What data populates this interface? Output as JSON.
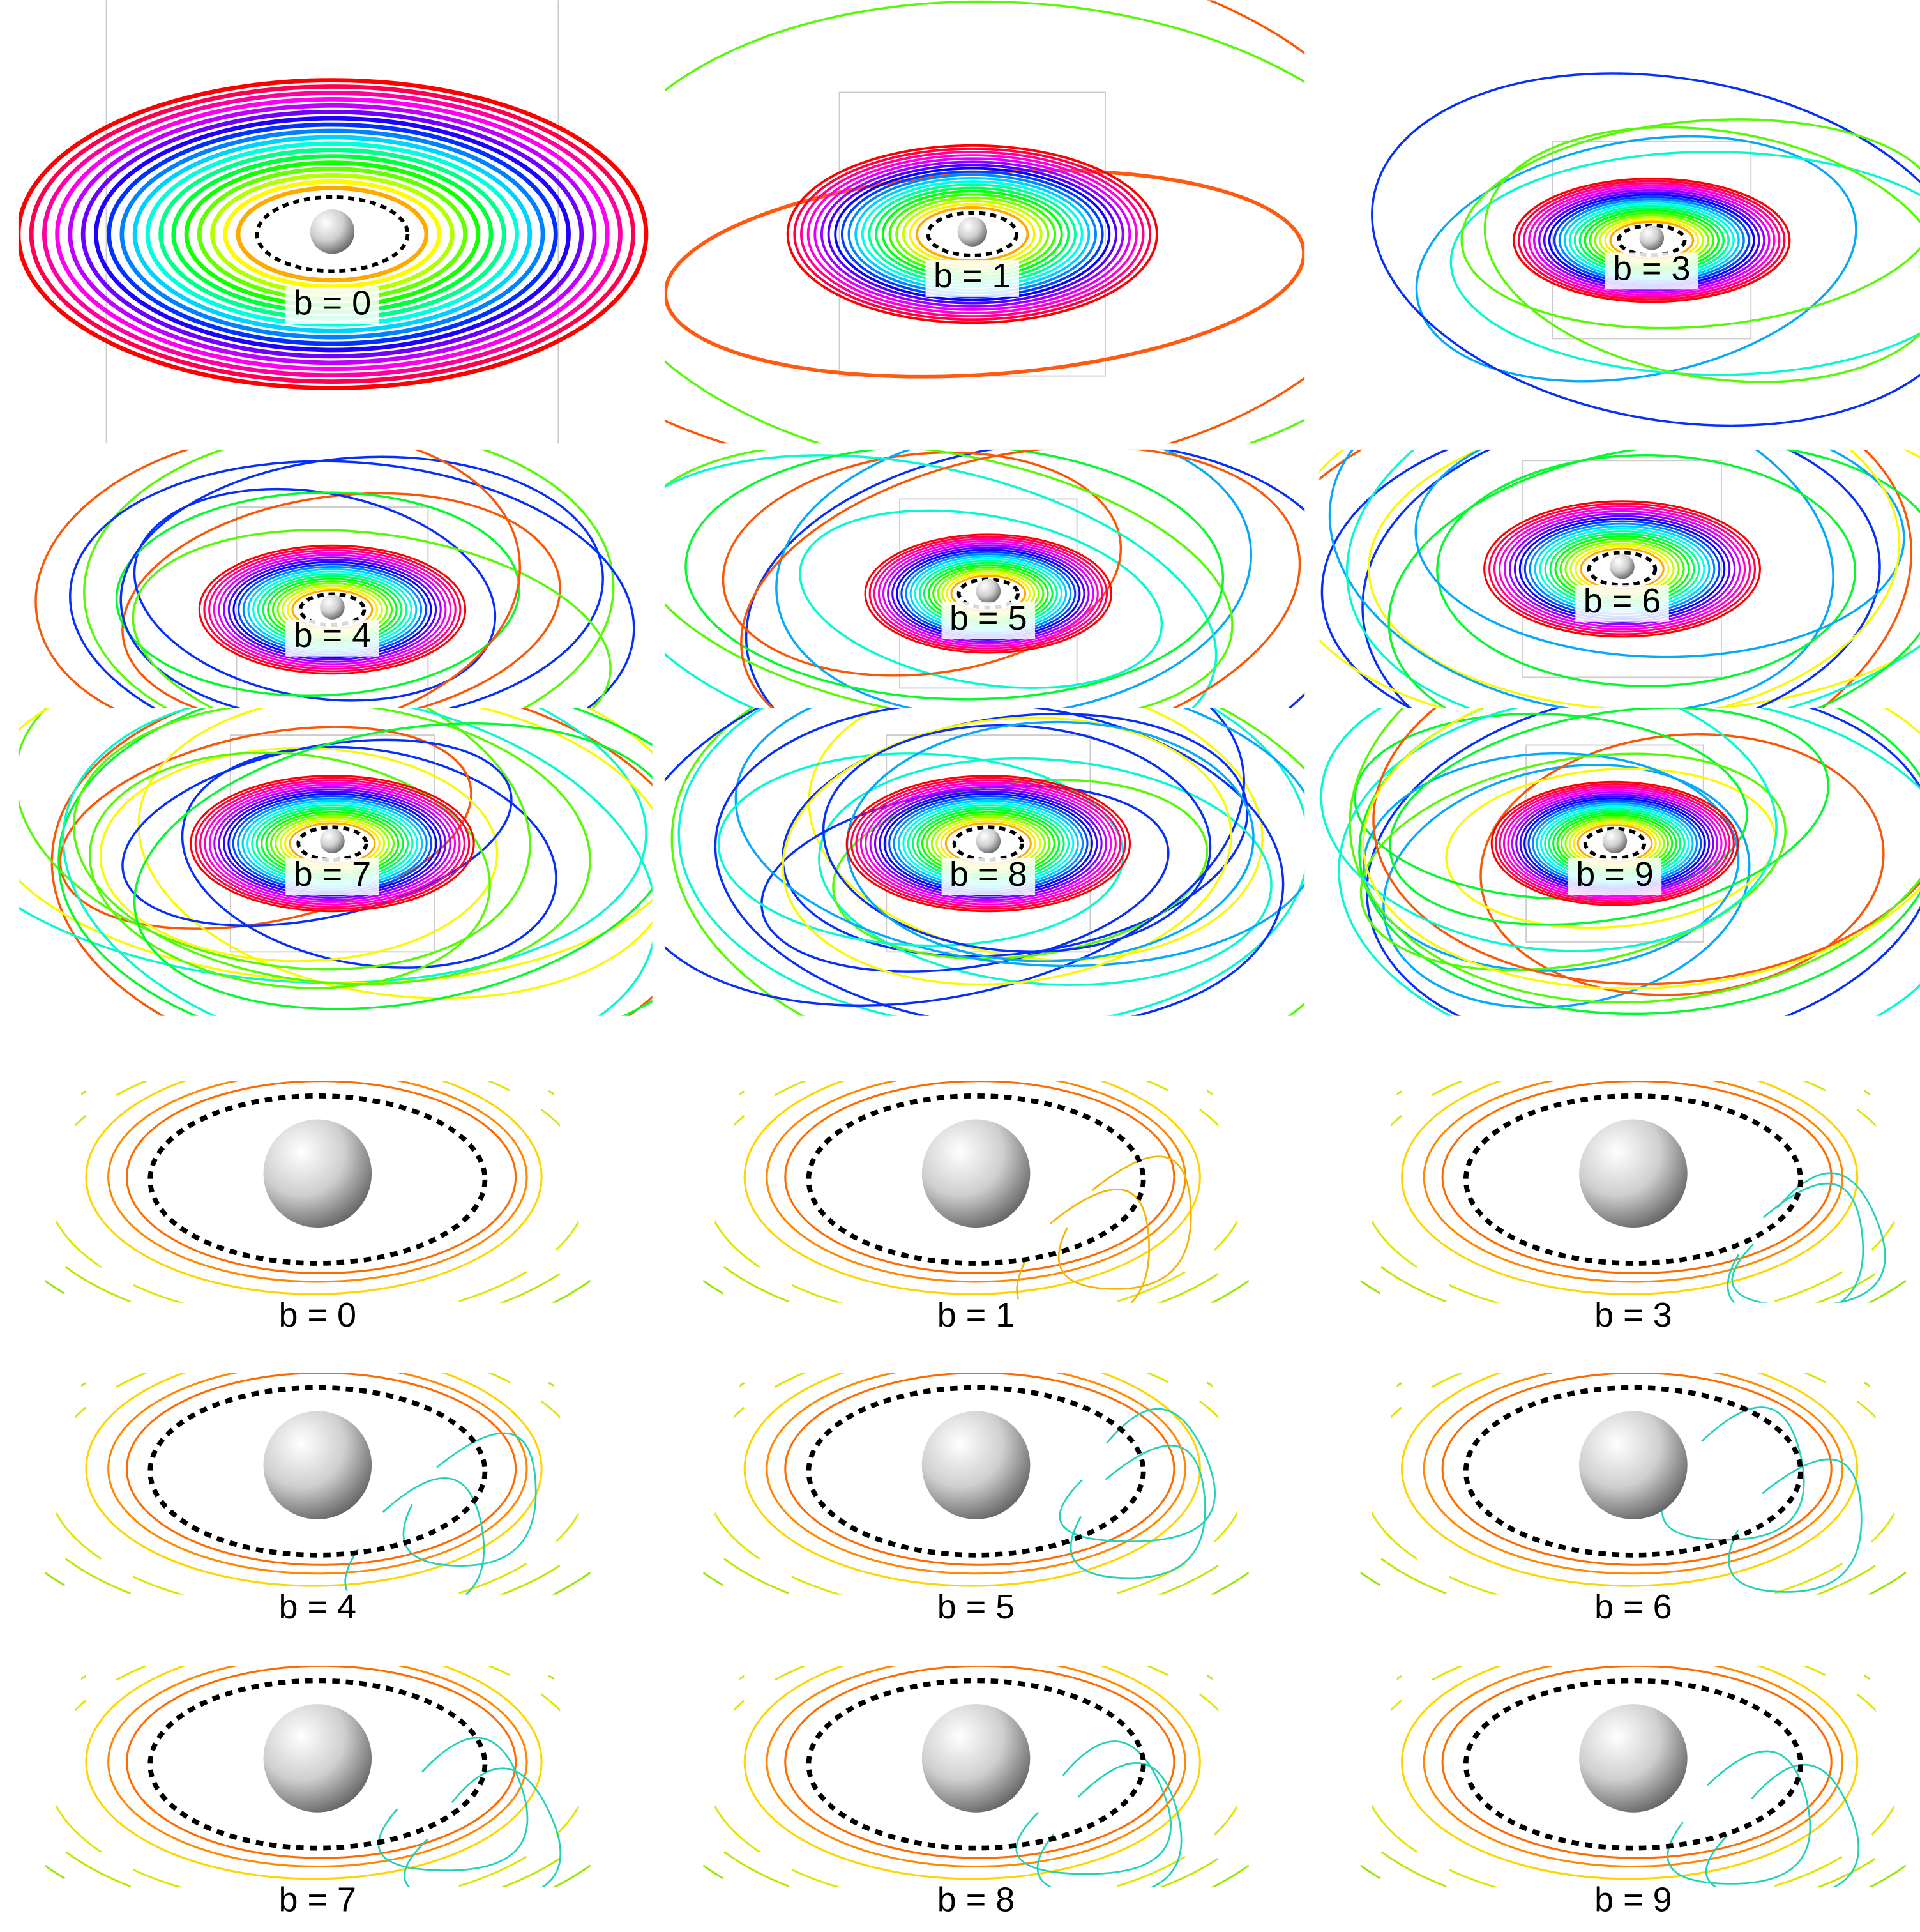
{
  "top_panels": [
    {
      "label": "b = 0"
    },
    {
      "label": "b = 1"
    },
    {
      "label": "b = 3"
    },
    {
      "label": "b = 4"
    },
    {
      "label": "b = 5"
    },
    {
      "label": "b = 6"
    },
    {
      "label": "b = 7"
    },
    {
      "label": "b = 8"
    },
    {
      "label": "b = 9"
    }
  ],
  "bottom_panels": [
    {
      "label": "b = 0"
    },
    {
      "label": "b = 1"
    },
    {
      "label": "b = 3"
    },
    {
      "label": "b = 4"
    },
    {
      "label": "b = 5"
    },
    {
      "label": "b = 6"
    },
    {
      "label": "b = 7"
    },
    {
      "label": "b = 8"
    },
    {
      "label": "b = 9"
    }
  ]
}
